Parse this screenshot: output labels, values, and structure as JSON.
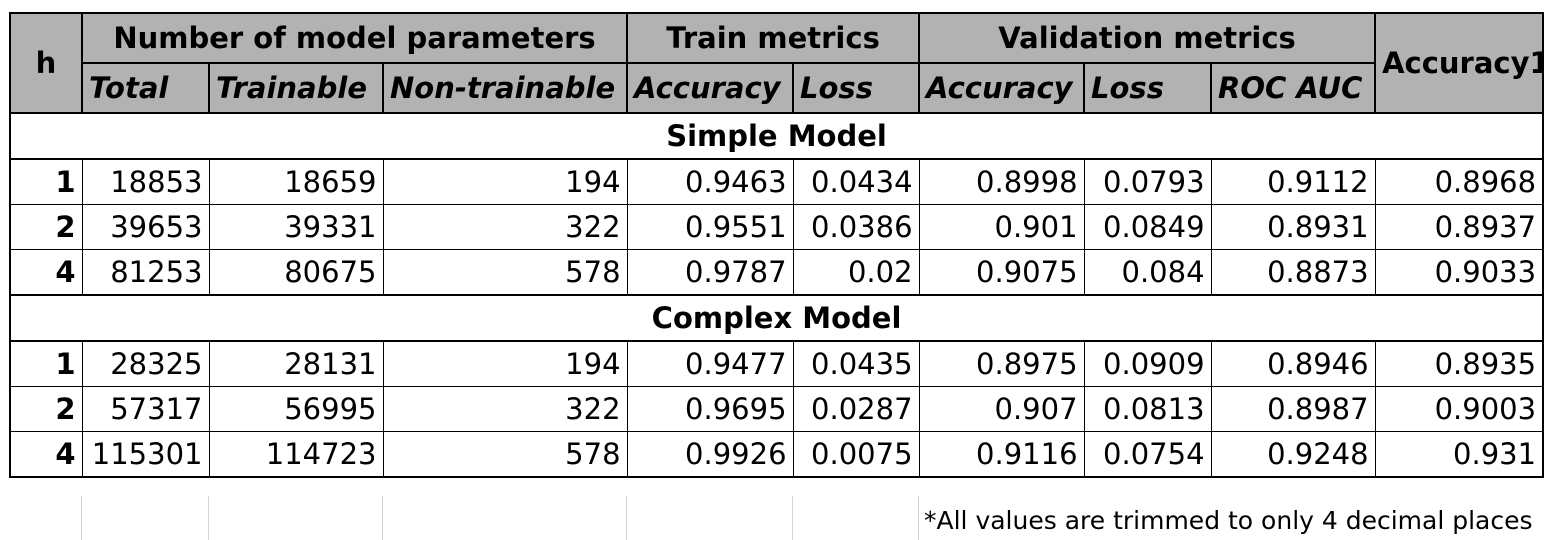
{
  "header": {
    "h": "h",
    "groups": {
      "params": "Number of model parameters",
      "train": "Train metrics",
      "validation": "Validation metrics",
      "accuracy1": "Accuracy1"
    },
    "sub": [
      "Total",
      "Trainable",
      "Non-trainable",
      "Accuracy",
      "Loss",
      "Accuracy",
      "Loss",
      "ROC AUC"
    ]
  },
  "sections": [
    {
      "title": "Simple Model",
      "rows": [
        [
          "1",
          "18853",
          "18659",
          "194",
          "0.9463",
          "0.0434",
          "0.8998",
          "0.0793",
          "0.9112",
          "0.8968"
        ],
        [
          "2",
          "39653",
          "39331",
          "322",
          "0.9551",
          "0.0386",
          "0.901",
          "0.0849",
          "0.8931",
          "0.8937"
        ],
        [
          "4",
          "81253",
          "80675",
          "578",
          "0.9787",
          "0.02",
          "0.9075",
          "0.084",
          "0.8873",
          "0.9033"
        ]
      ]
    },
    {
      "title": "Complex Model",
      "rows": [
        [
          "1",
          "28325",
          "28131",
          "194",
          "0.9477",
          "0.0435",
          "0.8975",
          "0.0909",
          "0.8946",
          "0.8935"
        ],
        [
          "2",
          "57317",
          "56995",
          "322",
          "0.9695",
          "0.0287",
          "0.907",
          "0.0813",
          "0.8987",
          "0.9003"
        ],
        [
          "4",
          "115301",
          "114723",
          "578",
          "0.9926",
          "0.0075",
          "0.9116",
          "0.0754",
          "0.9248",
          "0.931"
        ]
      ]
    }
  ],
  "footnote": "*All values are trimmed to only 4 decimal places"
}
